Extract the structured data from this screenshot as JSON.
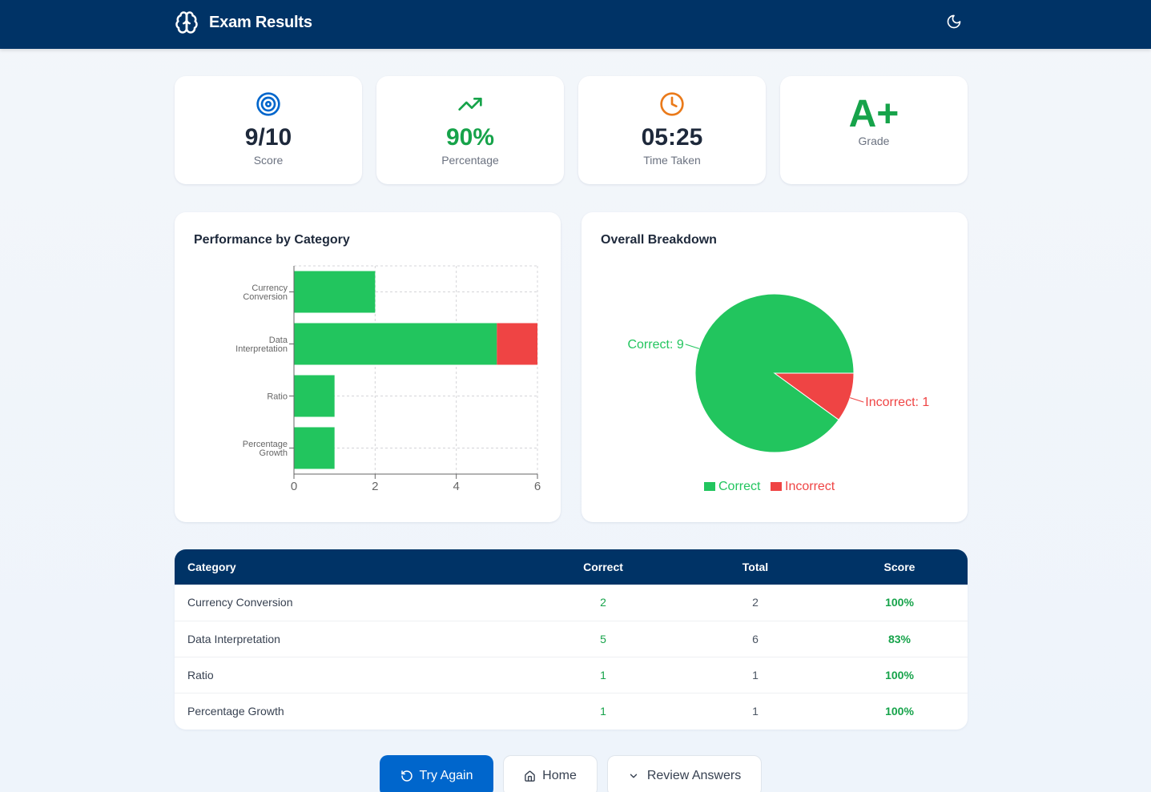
{
  "header": {
    "title": "Exam Results",
    "logo_icon": "brain-icon",
    "theme_toggle_icon": "moon-icon"
  },
  "stats": [
    {
      "icon": "target-icon",
      "value": "9/10",
      "label": "Score",
      "color": "#1e293b",
      "icon_color": "#0066cc"
    },
    {
      "icon": "trending-up-icon",
      "value": "90%",
      "label": "Percentage",
      "color": "#16a34a",
      "icon_color": "#16a34a"
    },
    {
      "icon": "clock-icon",
      "value": "05:25",
      "label": "Time Taken",
      "color": "#1e293b",
      "icon_color": "#ea7a1a"
    },
    {
      "value": "A+",
      "label": "Grade",
      "color": "#16a34a"
    }
  ],
  "colors": {
    "brand": "#003366",
    "primary": "#0066cc",
    "correct": "#22c55e",
    "incorrect": "#ef4444",
    "success_text": "#16a34a"
  },
  "chart_data": [
    {
      "type": "bar",
      "orientation": "horizontal",
      "stacked": true,
      "title": "Performance by Category",
      "categories": [
        "Currency Conversion",
        "Data Interpretation",
        "Ratio",
        "Percentage Growth"
      ],
      "category_label_lines": [
        [
          "Currency",
          "Conversion"
        ],
        [
          "Data",
          "Interpretation"
        ],
        [
          "Ratio"
        ],
        [
          "Percentage",
          "Growth"
        ]
      ],
      "series": [
        {
          "name": "Correct",
          "color": "#22c55e",
          "values": [
            2,
            5,
            1,
            1
          ]
        },
        {
          "name": "Incorrect",
          "color": "#ef4444",
          "values": [
            0,
            1,
            0,
            0
          ]
        }
      ],
      "xlim": [
        0,
        6
      ],
      "xticks": [
        0,
        2,
        4,
        6
      ],
      "grid": true,
      "xlabel": "",
      "ylabel": ""
    },
    {
      "type": "pie",
      "title": "Overall Breakdown",
      "slices": [
        {
          "label": "Correct",
          "value": 9,
          "color": "#22c55e",
          "data_label": "Correct: 9"
        },
        {
          "label": "Incorrect",
          "value": 1,
          "color": "#ef4444",
          "data_label": "Incorrect: 1"
        }
      ],
      "legend": [
        "Correct",
        "Incorrect"
      ],
      "legend_position": "bottom"
    }
  ],
  "table": {
    "headers": {
      "category": "Category",
      "correct": "Correct",
      "total": "Total",
      "score": "Score"
    },
    "rows": [
      {
        "category": "Currency Conversion",
        "correct": "2",
        "total": "2",
        "score": "100%"
      },
      {
        "category": "Data Interpretation",
        "correct": "5",
        "total": "6",
        "score": "83%"
      },
      {
        "category": "Ratio",
        "correct": "1",
        "total": "1",
        "score": "100%"
      },
      {
        "category": "Percentage Growth",
        "correct": "1",
        "total": "1",
        "score": "100%"
      }
    ]
  },
  "actions": {
    "try_again": "Try Again",
    "home": "Home",
    "review": "Review Answers"
  }
}
